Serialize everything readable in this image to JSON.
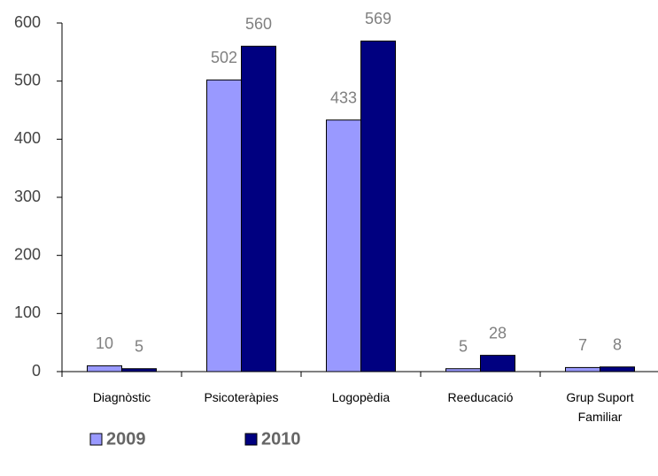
{
  "chart_data": {
    "type": "bar",
    "categories": [
      "Diagnòstic",
      "Psicoteràpies",
      "Logopèdia",
      "Reeducació",
      "Grup Suport Familiar"
    ],
    "series": [
      {
        "name": "2009",
        "color": "#9999ff",
        "values": [
          10,
          502,
          433,
          5,
          7
        ]
      },
      {
        "name": "2010",
        "color": "#000080",
        "values": [
          5,
          560,
          569,
          28,
          8
        ]
      }
    ],
    "ylim": [
      0,
      600
    ],
    "yticks": [
      0,
      100,
      200,
      300,
      400,
      500,
      600
    ],
    "grid": false,
    "legend": "bottom"
  }
}
